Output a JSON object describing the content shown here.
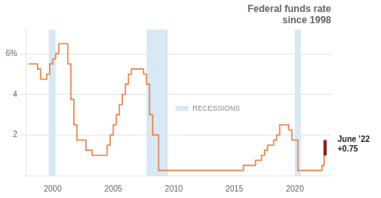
{
  "chart_data": {
    "type": "line",
    "line_style": "step",
    "title": "Federal funds rate\nsince 1998",
    "x": [
      1998.0,
      1998.25,
      1998.5,
      1998.75,
      1999.0,
      1999.25,
      1999.5,
      1999.75,
      2000.0,
      2000.25,
      2000.5,
      2000.75,
      2001.0,
      2001.25,
      2001.5,
      2001.75,
      2002.0,
      2002.25,
      2002.5,
      2002.75,
      2003.0,
      2003.25,
      2003.5,
      2003.75,
      2004.0,
      2004.25,
      2004.5,
      2004.75,
      2005.0,
      2005.25,
      2005.5,
      2005.75,
      2006.0,
      2006.25,
      2006.5,
      2006.75,
      2007.0,
      2007.25,
      2007.5,
      2007.75,
      2008.0,
      2008.25,
      2008.5,
      2008.75,
      2009.0,
      2009.25,
      2009.5,
      2009.75,
      2010.0,
      2010.5,
      2011.0,
      2011.5,
      2012.0,
      2012.5,
      2013.0,
      2013.5,
      2014.0,
      2014.5,
      2015.0,
      2015.25,
      2015.5,
      2015.75,
      2016.0,
      2016.25,
      2016.5,
      2016.75,
      2017.0,
      2017.25,
      2017.5,
      2017.75,
      2018.0,
      2018.25,
      2018.5,
      2018.75,
      2019.0,
      2019.25,
      2019.5,
      2019.75,
      2020.0,
      2020.25,
      2020.5,
      2020.75,
      2021.0,
      2021.25,
      2021.5,
      2021.75,
      2022.0,
      2022.25,
      2022.42,
      2022.5
    ],
    "values": [
      5.5,
      5.5,
      5.5,
      5.25,
      4.75,
      4.75,
      5.0,
      5.5,
      5.75,
      6.0,
      6.5,
      6.5,
      6.5,
      5.5,
      3.75,
      2.5,
      1.75,
      1.75,
      1.75,
      1.25,
      1.25,
      1.0,
      1.0,
      1.0,
      1.0,
      1.0,
      1.5,
      2.0,
      2.5,
      3.0,
      3.5,
      4.0,
      4.5,
      5.0,
      5.25,
      5.25,
      5.25,
      5.25,
      5.0,
      4.5,
      3.0,
      2.0,
      2.0,
      0.25,
      0.25,
      0.25,
      0.25,
      0.25,
      0.25,
      0.25,
      0.25,
      0.25,
      0.25,
      0.25,
      0.25,
      0.25,
      0.25,
      0.25,
      0.25,
      0.25,
      0.25,
      0.5,
      0.5,
      0.5,
      0.5,
      0.75,
      0.75,
      1.0,
      1.25,
      1.5,
      1.5,
      1.75,
      2.0,
      2.5,
      2.5,
      2.5,
      2.25,
      1.75,
      1.75,
      0.25,
      0.25,
      0.25,
      0.25,
      0.25,
      0.25,
      0.25,
      0.25,
      0.5,
      1.0,
      1.75
    ],
    "color": "#E8834A",
    "xlim": [
      1997.8,
      2023.0
    ],
    "xticks": [
      2000,
      2005,
      2010,
      2015,
      2020
    ],
    "ylim": [
      0.0,
      7.2
    ],
    "yticks": [
      2,
      4,
      {
        "value": 6,
        "label": "6%"
      }
    ],
    "grid": "y",
    "shaded_regions": {
      "label": "RECESSIONS",
      "color": "#D8E8F5",
      "ranges": [
        [
          1999.67,
          2000.25
        ],
        [
          2007.75,
          2009.5
        ],
        [
          2020.0,
          2020.5
        ]
      ]
    },
    "annotation": {
      "lines": [
        "June ’22",
        "+0.75"
      ],
      "color": "#8B1A10"
    }
  }
}
